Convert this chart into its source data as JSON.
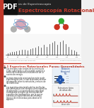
{
  "bg_color": "#f0f0f0",
  "left_bar_color": "#c0392b",
  "header_bg": "#222222",
  "title_line1": "os de Espectroscopia",
  "title_line2": "Espectroscopía Rotacional",
  "title_color": "#c0392b",
  "pdf_label": "PDF",
  "pdf_text_color": "#ffffff",
  "section_title": "2.1 Espectros Rotacionales Puros: Generalidades",
  "section_color": "#c0392b",
  "body_text_color": "#222222",
  "bullet_points": [
    "Las energías rotacionales de las moléculas\nestán cuantizadas y sólo pueden cambiar a\ntravés de la absorción o transmisión de un\ncuanto de energía.",
    "La espectroscopía rotacional permite medir\nesas energías, con lo cual se pueden obtener\ninformación sobre la estructura y enlaces de\nlas moléculas.",
    "Los espectros rotacionales de las moléculas\nson observables con energías como espectros\nde absorción. La espectroscopía rotacional\ncorresponde la región de microondas del\nespectro electromagnético, por lo que se\nnecesita un espectrómetro de infrarrojo\nlejano o de microondas para observar el\nespectro."
  ],
  "right_panel_label1": "Población\nRotacional\nNBv",
  "right_panel_label2": "Estructura típica\nde absorción",
  "absorcion_label": "absorción"
}
